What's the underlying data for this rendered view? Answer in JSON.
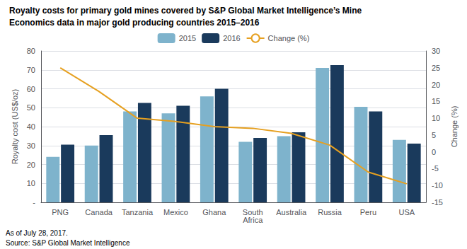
{
  "chart_data": {
    "type": "bar",
    "title": "Royalty costs for primary gold mines covered by S&P Global Market Intelligence’s Mine",
    "subtitle": "Economics data in major gold producing countries 2015–2016",
    "categories": [
      "PNG",
      "Canada",
      "Tanzania",
      "Mexico",
      "Ghana",
      "South\nAfrica",
      "Australia",
      "Russia",
      "Peru",
      "USA"
    ],
    "series": [
      {
        "name": "2015",
        "color": "#7eb3cc",
        "values": [
          24,
          30,
          48,
          47,
          56,
          32,
          35,
          71,
          50.5,
          33
        ]
      },
      {
        "name": "2016",
        "color": "#1a3a5c",
        "values": [
          30.5,
          35.5,
          52.5,
          51,
          60,
          34,
          37,
          72.5,
          48,
          31
        ]
      },
      {
        "name": "Change (%)",
        "type": "line",
        "axis": "y2",
        "color": "#e6a020",
        "values": [
          25,
          18,
          10,
          9,
          7.5,
          7,
          5.5,
          2,
          -6,
          -9.5
        ]
      }
    ],
    "ylabel": "Royalty cost (US$/oz)",
    "y2label": "Change (%)",
    "ylim": [
      0,
      80
    ],
    "yticks": [
      {
        "value": 0,
        "label": "-"
      },
      10,
      20,
      30,
      40,
      50,
      60,
      70,
      80
    ],
    "y2lim": [
      -15,
      30
    ],
    "y2ticks": [
      -15,
      -10,
      -5,
      0,
      5,
      10,
      15,
      20,
      25,
      30
    ],
    "grid": true,
    "legend": "top",
    "annotations": [
      "As of July 28, 2017.",
      "Source: S&P Global Market Intelligence"
    ]
  }
}
